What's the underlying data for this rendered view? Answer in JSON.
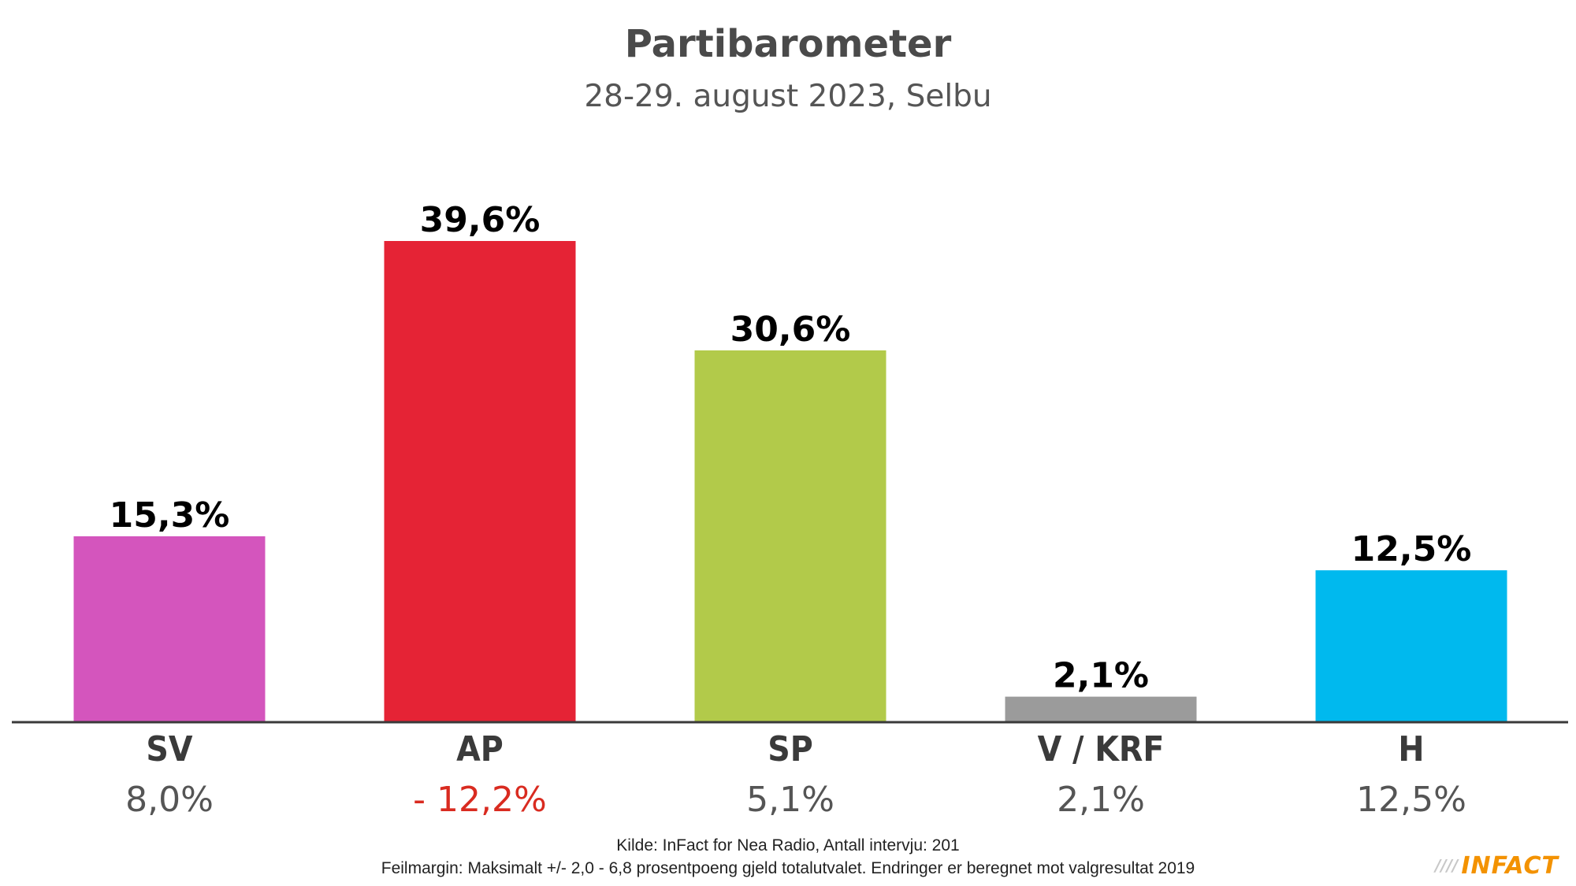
{
  "chart_data": {
    "type": "bar",
    "title": "Partibarometer",
    "subtitle": "28-29. august 2023, Selbu",
    "categories": [
      "SV",
      "AP",
      "SP",
      "V / KRF",
      "H"
    ],
    "values": [
      15.3,
      39.6,
      30.6,
      2.1,
      12.5
    ],
    "value_labels": [
      "15,3%",
      "39,6%",
      "30,6%",
      "2,1%",
      "12,5%"
    ],
    "changes": [
      "8,0%",
      "- 12,2%",
      "5,1%",
      "2,1%",
      "12,5%"
    ],
    "colors": [
      "#d455bd",
      "#e52335",
      "#b2ca4a",
      "#9b9b9b",
      "#00b9ee"
    ],
    "change_colors": [
      "#555555",
      "#d92b20",
      "#555555",
      "#555555",
      "#555555"
    ],
    "ylim": [
      0,
      44
    ],
    "grid": false
  },
  "footer": {
    "source": "Kilde: InFact for Nea Radio, Antall intervju: 201",
    "margin": "Feilmargin: Maksimalt +/- 2,0 - 6,8 prosentpoeng gjeld totalutvalet. Endringer er beregnet mot valgresultat 2019"
  },
  "logo": {
    "text": "INFACT",
    "stripes": "////"
  }
}
